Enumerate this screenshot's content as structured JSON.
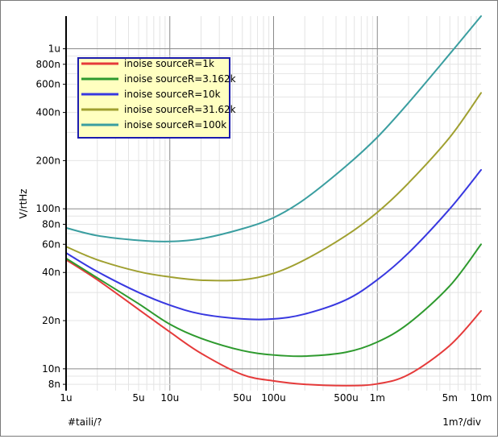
{
  "chart_data": {
    "type": "line",
    "x_scale": "log",
    "y_scale": "log",
    "xlim": [
      1e-06,
      0.01
    ],
    "ylim": [
      7.3e-09,
      1.6e-06
    ],
    "grid": true,
    "legend_position": "top-left",
    "ylabel": "V/rtHz",
    "x_axis_name": "#taili/?",
    "x_div_label": "1m?/div",
    "x_ticks": [
      {
        "v": 1e-06,
        "label": "1u"
      },
      {
        "v": 5e-06,
        "label": "5u"
      },
      {
        "v": 1e-05,
        "label": "10u"
      },
      {
        "v": 5e-05,
        "label": "50u"
      },
      {
        "v": 0.0001,
        "label": "100u"
      },
      {
        "v": 0.0005,
        "label": "500u"
      },
      {
        "v": 0.001,
        "label": "1m"
      },
      {
        "v": 0.005,
        "label": "5m"
      },
      {
        "v": 0.01,
        "label": "10m"
      }
    ],
    "y_ticks": [
      {
        "v": 8e-09,
        "label": "8n"
      },
      {
        "v": 1e-08,
        "label": "10n"
      },
      {
        "v": 2e-08,
        "label": "20n"
      },
      {
        "v": 4e-08,
        "label": "40n"
      },
      {
        "v": 6e-08,
        "label": "60n"
      },
      {
        "v": 8e-08,
        "label": "80n"
      },
      {
        "v": 1e-07,
        "label": "100n"
      },
      {
        "v": 2e-07,
        "label": "200n"
      },
      {
        "v": 4e-07,
        "label": "400n"
      },
      {
        "v": 6e-07,
        "label": "600n"
      },
      {
        "v": 8e-07,
        "label": "800n"
      },
      {
        "v": 1e-06,
        "label": "1u"
      }
    ],
    "x": [
      1e-06,
      2e-06,
      5e-06,
      1e-05,
      2e-05,
      5e-05,
      0.0001,
      0.0002,
      0.0005,
      0.001,
      0.002,
      0.005,
      0.01
    ],
    "series": [
      {
        "name": "inoise sourceR=1k",
        "color": "#e53a3a",
        "values": [
          4.8e-08,
          3.6e-08,
          2.35e-08,
          1.7e-08,
          1.25e-08,
          9.2e-09,
          8.4e-09,
          8e-09,
          7.85e-09,
          8.05e-09,
          9.2e-09,
          1.4e-08,
          2.3e-08
        ]
      },
      {
        "name": "inoise sourceR=3.162k",
        "color": "#2e9a2e",
        "values": [
          4.9e-08,
          3.7e-08,
          2.55e-08,
          1.9e-08,
          1.55e-08,
          1.3e-08,
          1.22e-08,
          1.2e-08,
          1.27e-08,
          1.47e-08,
          1.92e-08,
          3.3e-08,
          6e-08
        ]
      },
      {
        "name": "inoise sourceR=10k",
        "color": "#3838e0",
        "values": [
          5.3e-08,
          4.05e-08,
          3e-08,
          2.5e-08,
          2.2e-08,
          2.05e-08,
          2.05e-08,
          2.2e-08,
          2.7e-08,
          3.6e-08,
          5.3e-08,
          1e-07,
          1.75e-07
        ]
      },
      {
        "name": "inoise sourceR=31.62k",
        "color": "#a0a030",
        "values": [
          5.8e-08,
          4.8e-08,
          4.05e-08,
          3.75e-08,
          3.58e-08,
          3.6e-08,
          3.95e-08,
          4.8e-08,
          6.8e-08,
          9.5e-08,
          1.45e-07,
          2.8e-07,
          5.3e-07
        ]
      },
      {
        "name": "inoise sourceR=100k",
        "color": "#3a9ea0",
        "values": [
          7.6e-08,
          6.8e-08,
          6.35e-08,
          6.25e-08,
          6.5e-08,
          7.5e-08,
          8.8e-08,
          1.15e-07,
          1.85e-07,
          2.8e-07,
          4.6e-07,
          9.3e-07,
          1.6e-06
        ]
      }
    ]
  }
}
